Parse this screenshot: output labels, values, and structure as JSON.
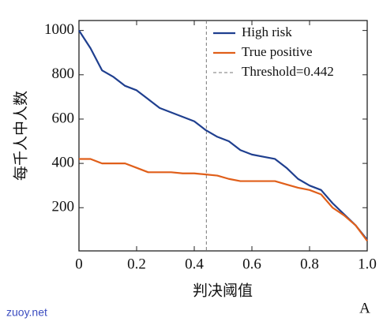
{
  "chart_data": {
    "type": "line",
    "xlabel": "判决阈值",
    "ylabel": "每千人中人数",
    "panel_label": "A",
    "watermark": "zuoy.net",
    "x": [
      0,
      0.04,
      0.08,
      0.12,
      0.16,
      0.2,
      0.24,
      0.28,
      0.32,
      0.36,
      0.4,
      0.44,
      0.48,
      0.52,
      0.56,
      0.6,
      0.64,
      0.68,
      0.72,
      0.76,
      0.8,
      0.84,
      0.88,
      0.92,
      0.96,
      1.0
    ],
    "series": [
      {
        "name": "High risk",
        "color": "#1f3f8f",
        "values": [
          1000,
          920,
          820,
          790,
          750,
          730,
          690,
          650,
          630,
          610,
          590,
          550,
          520,
          500,
          460,
          440,
          430,
          420,
          380,
          330,
          300,
          280,
          220,
          170,
          120,
          55
        ]
      },
      {
        "name": "True positive",
        "color": "#e05f1a",
        "values": [
          420,
          420,
          400,
          400,
          400,
          380,
          360,
          360,
          360,
          355,
          355,
          350,
          345,
          330,
          320,
          320,
          320,
          320,
          305,
          290,
          280,
          260,
          200,
          165,
          120,
          50
        ]
      }
    ],
    "threshold": {
      "value": 0.442,
      "label": "Threshold=0.442"
    },
    "threshold_color": "#777777",
    "xlim": [
      0,
      1
    ],
    "ylim": [
      5,
      1045
    ],
    "xticks": [
      0,
      0.2,
      0.4,
      0.6,
      0.8,
      {
        "value": 1,
        "label": "1.0"
      }
    ],
    "yticks": [
      200,
      400,
      600,
      800,
      1000
    ],
    "legend": "upper right"
  }
}
